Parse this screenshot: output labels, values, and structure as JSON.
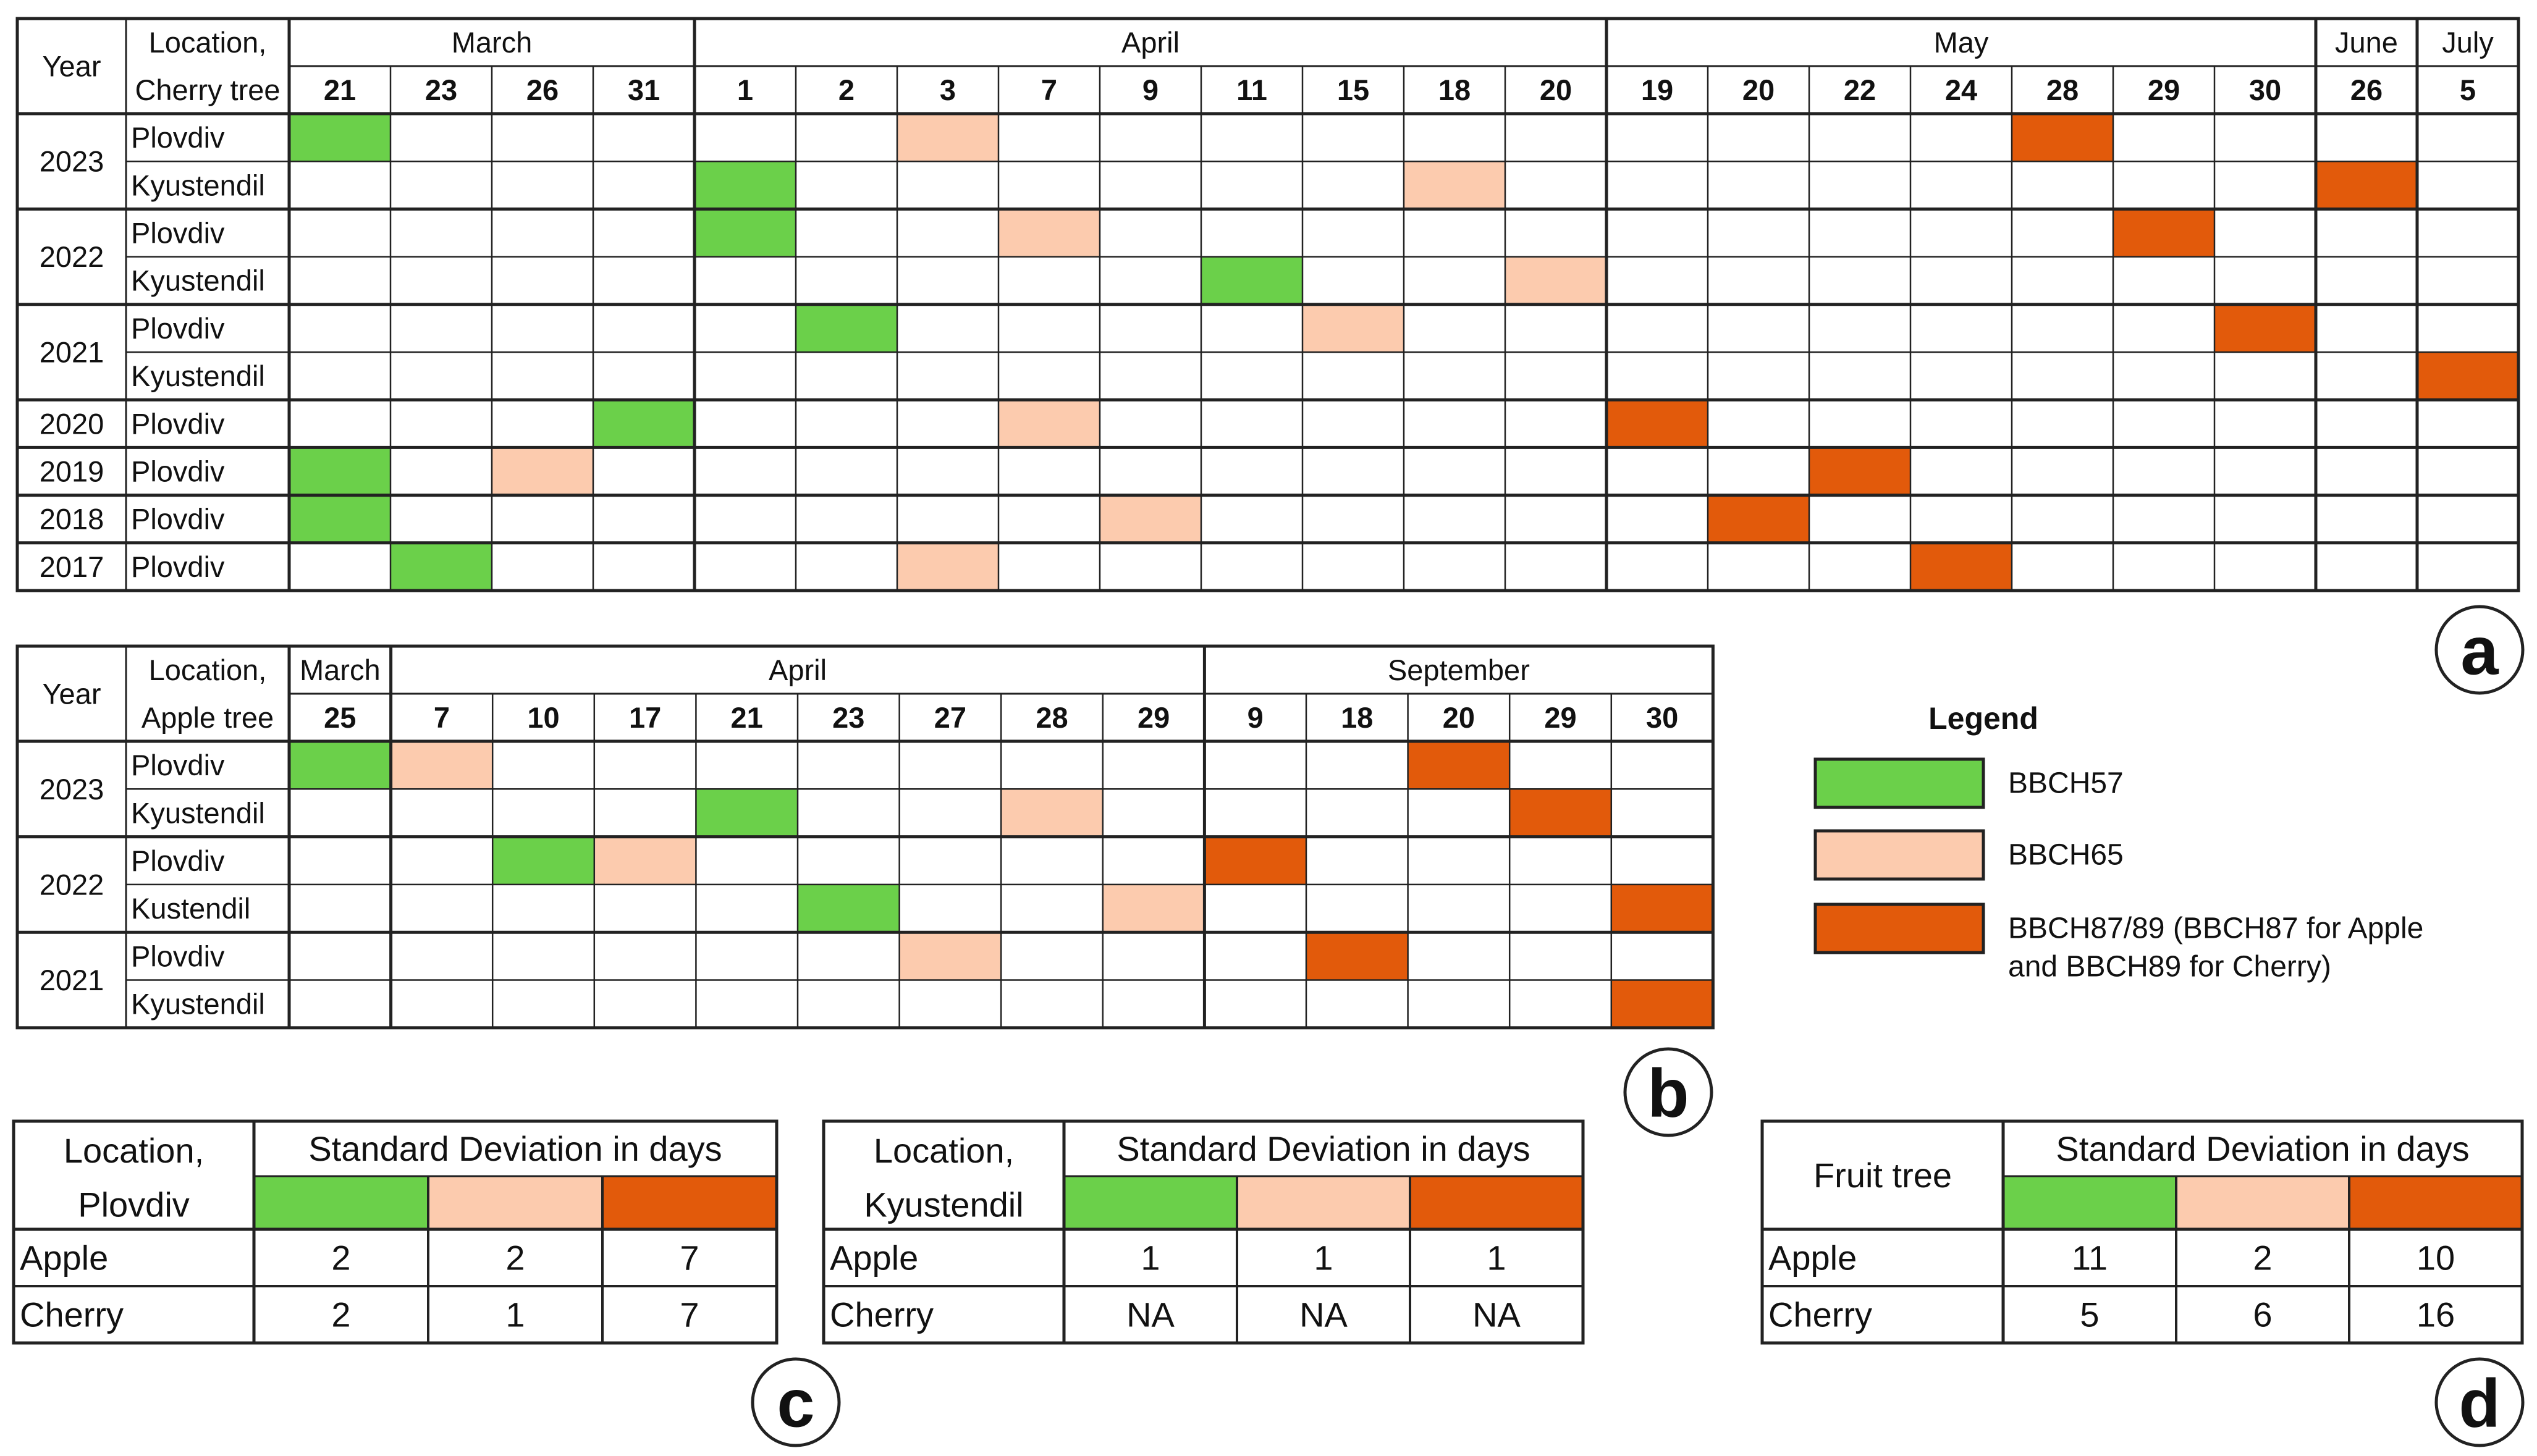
{
  "colors": {
    "bbch57": "#6BD04A",
    "bbch65": "#FCCBAE",
    "bbch87_89": "#E25A0B",
    "line": "#222222",
    "bg": "#ffffff"
  },
  "panel_labels": {
    "a": "a",
    "b": "b",
    "c": "c",
    "d": "d"
  },
  "cherry": {
    "year_header": "Year",
    "loc_header_l1": "Location,",
    "loc_header_l2": "Cherry tree",
    "months": [
      {
        "name": "March",
        "span": 4
      },
      {
        "name": "April",
        "span": 9
      },
      {
        "name": "May",
        "span": 7
      },
      {
        "name": "June",
        "span": 1
      },
      {
        "name": "July",
        "span": 1
      }
    ],
    "days": [
      "21",
      "23",
      "26",
      "31",
      "1",
      "2",
      "3",
      "7",
      "9",
      "11",
      "15",
      "18",
      "20",
      "19",
      "20",
      "22",
      "24",
      "28",
      "29",
      "30",
      "26",
      "5"
    ],
    "rows": [
      {
        "year": "2023",
        "location": "Plovdiv",
        "bbch57": 0,
        "bbch65": 6,
        "bbch87_89": 17
      },
      {
        "year": "",
        "location": "Kyustendil",
        "bbch57": 4,
        "bbch65": 11,
        "bbch87_89": 20
      },
      {
        "year": "2022",
        "location": "Plovdiv",
        "bbch57": 4,
        "bbch65": 7,
        "bbch87_89": 18
      },
      {
        "year": "",
        "location": "Kyustendil",
        "bbch57": 9,
        "bbch65": 12,
        "bbch87_89": null
      },
      {
        "year": "2021",
        "location": "Plovdiv",
        "bbch57": 5,
        "bbch65": 10,
        "bbch87_89": 19
      },
      {
        "year": "",
        "location": "Kyustendil",
        "bbch57": null,
        "bbch65": null,
        "bbch87_89": 21
      },
      {
        "year": "2020",
        "location": "Plovdiv",
        "bbch57": 3,
        "bbch65": 7,
        "bbch87_89": 13
      },
      {
        "year": "2019",
        "location": "Plovdiv",
        "bbch57": 0,
        "bbch65": 2,
        "bbch87_89": 15
      },
      {
        "year": "2018",
        "location": "Plovdiv",
        "bbch57": 0,
        "bbch65": 8,
        "bbch87_89": 14
      },
      {
        "year": "2017",
        "location": "Plovdiv",
        "bbch57": 1,
        "bbch65": 6,
        "bbch87_89": 16
      }
    ]
  },
  "apple": {
    "year_header": "Year",
    "loc_header_l1": "Location,",
    "loc_header_l2": "Apple tree",
    "months": [
      {
        "name": "March",
        "span": 1
      },
      {
        "name": "April",
        "span": 8
      },
      {
        "name": "September",
        "span": 5
      }
    ],
    "days": [
      "25",
      "7",
      "10",
      "17",
      "21",
      "23",
      "27",
      "28",
      "29",
      "9",
      "18",
      "20",
      "29",
      "30"
    ],
    "rows": [
      {
        "year": "2023",
        "location": "Plovdiv",
        "bbch57": 0,
        "bbch65": 1,
        "bbch87_89": 11
      },
      {
        "year": "",
        "location": "Kyustendil",
        "bbch57": 4,
        "bbch65": 7,
        "bbch87_89": 12
      },
      {
        "year": "2022",
        "location": "Plovdiv",
        "bbch57": 2,
        "bbch65": 3,
        "bbch87_89": 9
      },
      {
        "year": "",
        "location": "Kustendil",
        "bbch57": 5,
        "bbch65": 8,
        "bbch87_89": 13
      },
      {
        "year": "2021",
        "location": "Plovdiv",
        "bbch57": null,
        "bbch65": 6,
        "bbch87_89": 10
      },
      {
        "year": "",
        "location": "Kyustendil",
        "bbch57": null,
        "bbch65": null,
        "bbch87_89": 13
      }
    ]
  },
  "legend": {
    "title": "Legend",
    "items": [
      {
        "key": "bbch57",
        "lines": [
          "BBCH57"
        ]
      },
      {
        "key": "bbch65",
        "lines": [
          "BBCH65"
        ]
      },
      {
        "key": "bbch87_89",
        "lines": [
          "BBCH87/89 (BBCH87 for Apple",
          " and BBCH89 for Cherry)"
        ]
      }
    ]
  },
  "sd_tables": [
    {
      "id": "c1",
      "corner_l1": "Location,",
      "corner_l2": "Plovdiv",
      "header": "Standard Deviation in days",
      "rows": [
        {
          "label": "Apple",
          "values": [
            "2",
            "2",
            "7"
          ]
        },
        {
          "label": "Cherry",
          "values": [
            "2",
            "1",
            "7"
          ]
        }
      ]
    },
    {
      "id": "c2",
      "corner_l1": "Location,",
      "corner_l2": "Kyustendil",
      "header": "Standard Deviation in days",
      "rows": [
        {
          "label": "Apple",
          "values": [
            "1",
            "1",
            "1"
          ]
        },
        {
          "label": "Cherry",
          "values": [
            "NA",
            "NA",
            "NA"
          ]
        }
      ]
    },
    {
      "id": "d",
      "corner_l1": "Fruit tree",
      "corner_l2": "",
      "header": "Standard Deviation in days",
      "rows": [
        {
          "label": "Apple",
          "values": [
            "11",
            "2",
            "10"
          ]
        },
        {
          "label": "Cherry",
          "values": [
            "5",
            "6",
            "16"
          ]
        }
      ]
    }
  ]
}
